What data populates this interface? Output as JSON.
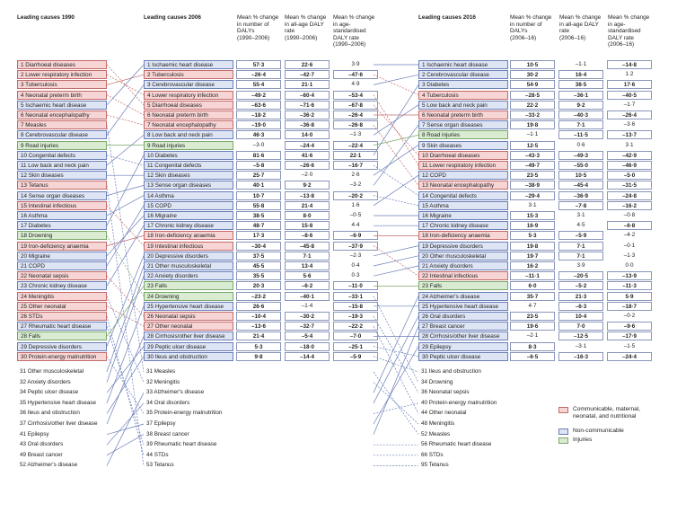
{
  "headers": {
    "col1990": "Leading causes 1990",
    "col2006": "Leading causes 2006",
    "col2016": "Leading causes 2016",
    "m1": "Mean % change\nin number of\nDALYs\n(1990–2006)",
    "m2": "Mean % change\nin all-age DALY\nrate\n(1990–2006)",
    "m3": "Mean % change\nin age-\nstandardised\nDALY rate\n(1990–2006)",
    "m4": "Mean % change\nin number of\nDALYs\n(2006–16)",
    "m5": "Mean % change\nin all-age DALY\nrate\n(2006–16)",
    "m6": "Mean % change\nin age-\nstandardised\nDALY rate\n(2006–16)"
  },
  "legend": [
    {
      "label": "Communicable, maternal,\nneonatal, and nutritional",
      "color": "#f7d5d5",
      "border": "#c46a6a"
    },
    {
      "label": "Non-communicable",
      "color": "#dde4f4",
      "border": "#6b7fb8"
    },
    {
      "label": "Injuries",
      "color": "#d9ecd2",
      "border": "#7aa86a"
    }
  ],
  "chart_data": {
    "type": "table",
    "col1990": [
      {
        "label": "1 Diarrhoeal diseases",
        "cat": "cmnn"
      },
      {
        "label": "2 Lower respiratory infection",
        "cat": "cmnn"
      },
      {
        "label": "3 Tuberculosis",
        "cat": "cmnn"
      },
      {
        "label": "4 Neonatal preterm birth",
        "cat": "cmnn"
      },
      {
        "label": "5 Ischaemic heart disease",
        "cat": "nc"
      },
      {
        "label": "6 Neonatal encephalopathy",
        "cat": "cmnn"
      },
      {
        "label": "7 Measles",
        "cat": "cmnn"
      },
      {
        "label": "8 Cerebrovascular disease",
        "cat": "nc"
      },
      {
        "label": "9 Road injuries",
        "cat": "inj"
      },
      {
        "label": "10 Congenital defects",
        "cat": "nc"
      },
      {
        "label": "11 Low back and neck pain",
        "cat": "nc"
      },
      {
        "label": "12 Skin diseases",
        "cat": "nc"
      },
      {
        "label": "13 Tetanus",
        "cat": "cmnn"
      },
      {
        "label": "14 Sense organ diseases",
        "cat": "nc"
      },
      {
        "label": "15 Intestinal infectious",
        "cat": "cmnn"
      },
      {
        "label": "16 Asthma",
        "cat": "nc"
      },
      {
        "label": "17 Diabetes",
        "cat": "nc"
      },
      {
        "label": "18 Drowning",
        "cat": "inj"
      },
      {
        "label": "19 Iron-deficiency anaemia",
        "cat": "cmnn"
      },
      {
        "label": "20 Migraine",
        "cat": "nc"
      },
      {
        "label": "21 COPD",
        "cat": "nc"
      },
      {
        "label": "22 Neonatal sepsis",
        "cat": "cmnn"
      },
      {
        "label": "23 Chronic kidney disease",
        "cat": "nc"
      },
      {
        "label": "24 Meningitis",
        "cat": "cmnn"
      },
      {
        "label": "25 Other neonatal",
        "cat": "cmnn"
      },
      {
        "label": "26 STDs",
        "cat": "cmnn"
      },
      {
        "label": "27 Rheumatic heart disease",
        "cat": "nc"
      },
      {
        "label": "28 Falls",
        "cat": "inj"
      },
      {
        "label": "29 Depressive disorders",
        "cat": "nc"
      },
      {
        "label": "30 Protein-energy malnutrition",
        "cat": "cmnn"
      }
    ],
    "below1990": [
      "31 Other musculoskeletal",
      "32 Anxiety disorders",
      "34 Peptic ulcer disease",
      "35 Hypertensive heart disease",
      "36 Ileus and obstruction",
      "37 Cirrhosis/other liver disease",
      "41 Epilepsy",
      "43 Oral disorders",
      "49 Breast cancer",
      "52 Alzheimer's disease"
    ],
    "col2006": [
      {
        "label": "1 Ischaemic heart disease",
        "cat": "nc",
        "v": [
          "57·3",
          "22·6",
          "3·9"
        ]
      },
      {
        "label": "2 Tuberculosis",
        "cat": "cmnn",
        "v": [
          "–26·4",
          "–42·7",
          "–47·6"
        ]
      },
      {
        "label": "3 Cerebrovascular disease",
        "cat": "nc",
        "v": [
          "55·4",
          "21·1",
          "4·9"
        ]
      },
      {
        "label": "4 Lower respiratory infection",
        "cat": "cmnn",
        "v": [
          "–49·2",
          "–60·4",
          "–53·4"
        ]
      },
      {
        "label": "5 Diarrhoeal diseases",
        "cat": "cmnn",
        "v": [
          "–63·6",
          "–71·6",
          "–67·8"
        ]
      },
      {
        "label": "6 Neonatal preterm birth",
        "cat": "cmnn",
        "v": [
          "–18·2",
          "–36·2",
          "–26·4"
        ]
      },
      {
        "label": "7 Neonatal encephalopathy",
        "cat": "cmnn",
        "v": [
          "–19·0",
          "–36·8",
          "–26·8"
        ]
      },
      {
        "label": "8 Low back and neck pain",
        "cat": "nc",
        "v": [
          "46·3",
          "14·0",
          "–1·3"
        ]
      },
      {
        "label": "9 Road injuries",
        "cat": "inj",
        "v": [
          "–3·0",
          "–24·4",
          "–22·4"
        ]
      },
      {
        "label": "10 Diabetes",
        "cat": "nc",
        "v": [
          "81·6",
          "41·6",
          "22·1"
        ]
      },
      {
        "label": "11 Congenital defects",
        "cat": "nc",
        "v": [
          "–5·8",
          "–26·6",
          "–16·7"
        ]
      },
      {
        "label": "12 Skin diseases",
        "cat": "nc",
        "v": [
          "25·7",
          "–2·0",
          "2·6"
        ]
      },
      {
        "label": "13 Sense organ diseases",
        "cat": "nc",
        "v": [
          "40·1",
          "9·2",
          "–3·2"
        ]
      },
      {
        "label": "14 Asthma",
        "cat": "nc",
        "v": [
          "10·7",
          "–13·8",
          "–20·2"
        ]
      },
      {
        "label": "15 COPD",
        "cat": "nc",
        "v": [
          "55·8",
          "21·4",
          "1·6"
        ]
      },
      {
        "label": "16 Migraine",
        "cat": "nc",
        "v": [
          "38·5",
          "8·0",
          "–0·5"
        ]
      },
      {
        "label": "17 Chronic kidney disease",
        "cat": "nc",
        "v": [
          "48·7",
          "15·8",
          "4·4"
        ]
      },
      {
        "label": "18 Iron-deficiency anaemia",
        "cat": "cmnn",
        "v": [
          "17·3",
          "–8·6",
          "–6·9"
        ]
      },
      {
        "label": "19 Intestinal infectious",
        "cat": "cmnn",
        "v": [
          "–30·4",
          "–45·8",
          "–37·9"
        ]
      },
      {
        "label": "20 Depressive disorders",
        "cat": "nc",
        "v": [
          "37·5",
          "7·1",
          "–2·3"
        ]
      },
      {
        "label": "21 Other musculoskeletal",
        "cat": "nc",
        "v": [
          "45·5",
          "13·4",
          "0·4"
        ]
      },
      {
        "label": "22 Anxiety disorders",
        "cat": "nc",
        "v": [
          "35·5",
          "5·6",
          "0·3"
        ]
      },
      {
        "label": "23 Falls",
        "cat": "inj",
        "v": [
          "20·3",
          "–6·2",
          "–11·0"
        ]
      },
      {
        "label": "24 Drowning",
        "cat": "inj",
        "v": [
          "–23·2",
          "–40·1",
          "–33·1"
        ]
      },
      {
        "label": "25 Hypertensive heart disease",
        "cat": "nc",
        "v": [
          "26·6",
          "–1·4",
          "–15·8"
        ]
      },
      {
        "label": "26 Neonatal sepsis",
        "cat": "cmnn",
        "v": [
          "–10·4",
          "–30·2",
          "–19·3"
        ]
      },
      {
        "label": "27 Other neonatal",
        "cat": "cmnn",
        "v": [
          "–13·6",
          "–32·7",
          "–22·2"
        ]
      },
      {
        "label": "28 Cirrhosis/other liver disease",
        "cat": "nc",
        "v": [
          "21·4",
          "–5·4",
          "–7·0"
        ]
      },
      {
        "label": "29 Peptic ulcer disease",
        "cat": "nc",
        "v": [
          "5·3",
          "–18·0",
          "–25·1"
        ]
      },
      {
        "label": "30 Ileus and obstruction",
        "cat": "nc",
        "v": [
          "9·8",
          "–14·4",
          "–5·9"
        ]
      }
    ],
    "below2006": [
      "31 Measles",
      "32 Meningitis",
      "33 Alzheimer's disease",
      "34 Oral disorders",
      "35 Protein-energy malnutrition",
      "37 Epilepsy",
      "38 Breast cancer",
      "39 Rheumatic heart disease",
      "44 STDs",
      "53 Tetanus"
    ],
    "col2016": [
      {
        "label": "1 Ischaemic heart disease",
        "cat": "nc",
        "v": [
          "10·5",
          "–1·1",
          "–14·8"
        ]
      },
      {
        "label": "2 Cerebrovascular disease",
        "cat": "nc",
        "v": [
          "30·2",
          "16·4",
          "1·2"
        ]
      },
      {
        "label": "3 Diabetes",
        "cat": "nc",
        "v": [
          "54·9",
          "38·5",
          "17·6"
        ]
      },
      {
        "label": "4 Tuberculosis",
        "cat": "cmnn",
        "v": [
          "–28·5",
          "–36·1",
          "–40·5"
        ]
      },
      {
        "label": "5 Low back and neck pain",
        "cat": "nc",
        "v": [
          "22·2",
          "9·2",
          "–1·7"
        ]
      },
      {
        "label": "6 Neonatal preterm birth",
        "cat": "cmnn",
        "v": [
          "–33·2",
          "–40·3",
          "–26·4"
        ]
      },
      {
        "label": "7 Sense organ diseases",
        "cat": "nc",
        "v": [
          "19·8",
          "7·1",
          "–3·6"
        ]
      },
      {
        "label": "8 Road injuries",
        "cat": "inj",
        "v": [
          "–1·1",
          "–11·5",
          "–13·7"
        ]
      },
      {
        "label": "9 Skin diseases",
        "cat": "nc",
        "v": [
          "12·5",
          "0·6",
          "3·1"
        ]
      },
      {
        "label": "10 Diarrhoeal diseases",
        "cat": "cmnn",
        "v": [
          "–43·3",
          "–49·3",
          "–42·9"
        ]
      },
      {
        "label": "11 Lower respiratory infection",
        "cat": "cmnn",
        "v": [
          "–49·7",
          "–55·0",
          "–46·9"
        ]
      },
      {
        "label": "12 COPD",
        "cat": "nc",
        "v": [
          "23·5",
          "10·5",
          "–5·0"
        ]
      },
      {
        "label": "13 Neonatal encephalopathy",
        "cat": "cmnn",
        "v": [
          "–38·9",
          "–45·4",
          "–31·5"
        ]
      },
      {
        "label": "14 Congenital defects",
        "cat": "nc",
        "v": [
          "–29·4",
          "–36·9",
          "–24·8"
        ]
      },
      {
        "label": "15 Asthma",
        "cat": "nc",
        "v": [
          "3·1",
          "–7·8",
          "–16·2"
        ]
      },
      {
        "label": "16 Migraine",
        "cat": "nc",
        "v": [
          "15·3",
          "3·1",
          "–0·8"
        ]
      },
      {
        "label": "17 Chronic kidney disease",
        "cat": "nc",
        "v": [
          "16·9",
          "4·5",
          "–6·8"
        ]
      },
      {
        "label": "18 Iron-deficiency anaemia",
        "cat": "cmnn",
        "v": [
          "5·3",
          "–5·9",
          "–4·2"
        ]
      },
      {
        "label": "19 Depressive disorders",
        "cat": "nc",
        "v": [
          "19·8",
          "7·1",
          "–0·1"
        ]
      },
      {
        "label": "20 Other musculoskeletal",
        "cat": "nc",
        "v": [
          "19·7",
          "7·1",
          "–1·3"
        ]
      },
      {
        "label": "21 Anxiety disorders",
        "cat": "nc",
        "v": [
          "16·2",
          "3·9",
          "0·0"
        ]
      },
      {
        "label": "22 Intestinal infectious",
        "cat": "cmnn",
        "v": [
          "–11·1",
          "–20·5",
          "–13·9"
        ]
      },
      {
        "label": "23 Falls",
        "cat": "inj",
        "v": [
          "6·0",
          "–5·2",
          "–11·3"
        ]
      },
      {
        "label": "24 Alzheimer's disease",
        "cat": "nc",
        "v": [
          "35·7",
          "21·3",
          "5·9"
        ]
      },
      {
        "label": "25 Hypertensive heart disease",
        "cat": "nc",
        "v": [
          "4·7",
          "–6·3",
          "–18·7"
        ]
      },
      {
        "label": "26 Oral disorders",
        "cat": "nc",
        "v": [
          "23·5",
          "10·4",
          "–0·2"
        ]
      },
      {
        "label": "27 Breast cancer",
        "cat": "nc",
        "v": [
          "19·6",
          "7·0",
          "–9·6"
        ]
      },
      {
        "label": "28 Cirrhosis/other liver disease",
        "cat": "nc",
        "v": [
          "–2·1",
          "–12·5",
          "–17·9"
        ]
      },
      {
        "label": "29 Epilepsy",
        "cat": "nc",
        "v": [
          "8·3",
          "–3·1",
          "–1·5"
        ]
      },
      {
        "label": "30 Peptic ulcer disease",
        "cat": "nc",
        "v": [
          "–6·5",
          "–16·3",
          "–24·4"
        ]
      }
    ],
    "below2016": [
      "31 Ileus and obstruction",
      "34 Drowning",
      "36 Neonatal sepsis",
      "40 Protein-energy malnutrition",
      "44 Other neonatal",
      "48 Meningitis",
      "52 Measles",
      "56 Rheumatic heart disease",
      "66 STDs",
      "95 Tetanus"
    ],
    "links_90_06": [
      [
        1,
        5
      ],
      [
        2,
        4
      ],
      [
        3,
        2
      ],
      [
        4,
        6
      ],
      [
        5,
        1
      ],
      [
        6,
        7
      ],
      [
        7,
        31
      ],
      [
        8,
        3
      ],
      [
        9,
        9
      ],
      [
        10,
        11
      ],
      [
        11,
        8
      ],
      [
        12,
        12
      ],
      [
        13,
        53
      ],
      [
        14,
        13
      ],
      [
        15,
        19
      ],
      [
        16,
        14
      ],
      [
        17,
        10
      ],
      [
        18,
        24
      ],
      [
        19,
        18
      ],
      [
        20,
        16
      ],
      [
        21,
        15
      ],
      [
        22,
        26
      ],
      [
        23,
        17
      ],
      [
        24,
        32
      ],
      [
        25,
        27
      ],
      [
        26,
        44
      ],
      [
        27,
        39
      ],
      [
        28,
        23
      ],
      [
        29,
        20
      ],
      [
        30,
        35
      ],
      [
        31,
        21
      ],
      [
        32,
        22
      ],
      [
        34,
        29
      ],
      [
        35,
        25
      ],
      [
        36,
        30
      ],
      [
        37,
        28
      ],
      [
        41,
        37
      ],
      [
        43,
        34
      ],
      [
        49,
        38
      ],
      [
        52,
        33
      ]
    ],
    "links_06_16": [
      [
        1,
        1
      ],
      [
        2,
        4
      ],
      [
        3,
        2
      ],
      [
        4,
        11
      ],
      [
        5,
        10
      ],
      [
        6,
        6
      ],
      [
        7,
        13
      ],
      [
        8,
        5
      ],
      [
        9,
        8
      ],
      [
        10,
        3
      ],
      [
        11,
        14
      ],
      [
        12,
        9
      ],
      [
        13,
        7
      ],
      [
        14,
        15
      ],
      [
        15,
        12
      ],
      [
        16,
        16
      ],
      [
        17,
        17
      ],
      [
        18,
        18
      ],
      [
        19,
        22
      ],
      [
        20,
        19
      ],
      [
        21,
        20
      ],
      [
        22,
        21
      ],
      [
        23,
        23
      ],
      [
        24,
        34
      ],
      [
        25,
        25
      ],
      [
        26,
        36
      ],
      [
        27,
        44
      ],
      [
        28,
        28
      ],
      [
        29,
        30
      ],
      [
        30,
        31
      ],
      [
        31,
        52
      ],
      [
        32,
        48
      ],
      [
        33,
        24
      ],
      [
        34,
        26
      ],
      [
        35,
        40
      ],
      [
        37,
        29
      ],
      [
        38,
        27
      ],
      [
        39,
        56
      ],
      [
        44,
        66
      ],
      [
        53,
        95
      ]
    ]
  }
}
